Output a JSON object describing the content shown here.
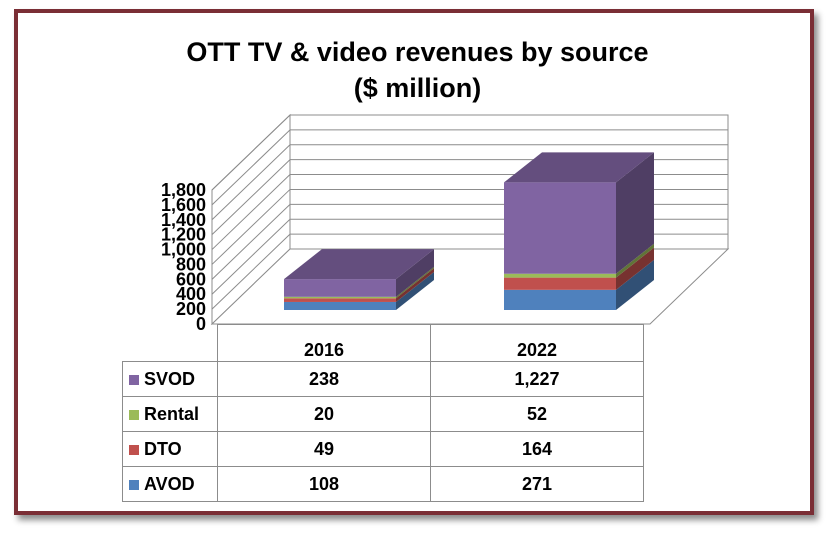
{
  "chart_data": {
    "type": "bar",
    "stacked": true,
    "three_d": true,
    "title": [
      "OTT TV & video revenues by source",
      "($ million)"
    ],
    "categories": [
      "2016",
      "2022"
    ],
    "ylim": [
      0,
      1800
    ],
    "yticks": [
      "0",
      "200",
      "400",
      "600",
      "800",
      "1,000",
      "1,200",
      "1,400",
      "1,600",
      "1,800"
    ],
    "grid": true,
    "legend": "table",
    "series": [
      {
        "name": "AVOD",
        "values": [
          108,
          271
        ],
        "labels": [
          "108",
          "271"
        ],
        "color": "#4f81bd"
      },
      {
        "name": "DTO",
        "values": [
          49,
          164
        ],
        "labels": [
          "49",
          "164"
        ],
        "color": "#c0504d"
      },
      {
        "name": "Rental",
        "values": [
          20,
          52
        ],
        "labels": [
          "20",
          "52"
        ],
        "color": "#9bbb59"
      },
      {
        "name": "SVOD",
        "values": [
          238,
          1227
        ],
        "labels": [
          "238",
          "1,227"
        ],
        "color": "#8064a2"
      }
    ]
  }
}
